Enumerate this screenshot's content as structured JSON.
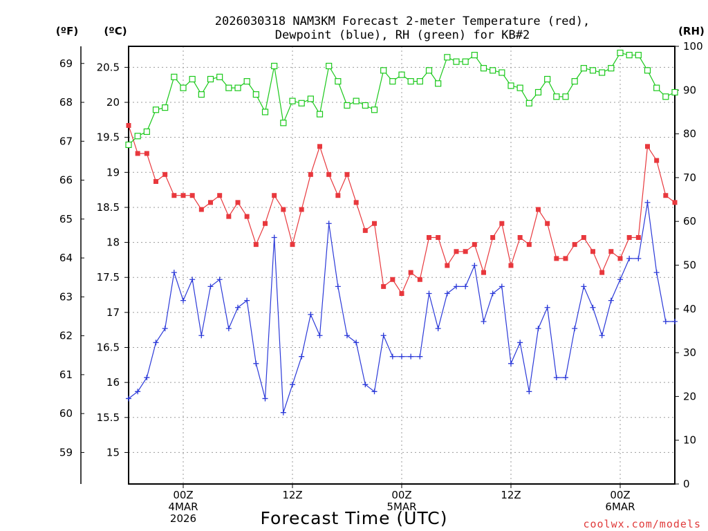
{
  "chart_data": {
    "type": "line",
    "title_line1": "2026030318 NAM3KM Forecast 2-meter Temperature (red),",
    "title_line2": "Dewpoint (blue), RH (green) for KB#2",
    "unit_labels": {
      "fahrenheit": "(ºF)",
      "celsius": "(ºC)",
      "rh": "(RH)"
    },
    "xlabel": "Forecast Time (UTC)",
    "credit": "coolwx.com/models",
    "x_ticks": [
      {
        "hour": 6,
        "lines": [
          "00Z",
          "4MAR",
          "2026"
        ]
      },
      {
        "hour": 18,
        "lines": [
          "12Z"
        ]
      },
      {
        "hour": 30,
        "lines": [
          "00Z",
          "5MAR"
        ]
      },
      {
        "hour": 42,
        "lines": [
          "12Z"
        ]
      },
      {
        "hour": 54,
        "lines": [
          "00Z",
          "6MAR"
        ]
      }
    ],
    "xlim": [
      0,
      60
    ],
    "celsius_lim": [
      14.55,
      20.8
    ],
    "celsius_ticks": [
      "15",
      "15.5",
      "16",
      "16.5",
      "17",
      "17.5",
      "18",
      "18.5",
      "19",
      "19.5",
      "20",
      "20.5"
    ],
    "fahrenheit_ticks": [
      "59",
      "60",
      "61",
      "62",
      "63",
      "64",
      "65",
      "66",
      "67",
      "68",
      "69"
    ],
    "rh_lim": [
      0,
      100
    ],
    "rh_ticks": [
      "0",
      "10",
      "20",
      "30",
      "40",
      "50",
      "60",
      "70",
      "80",
      "90",
      "100"
    ],
    "series": [
      {
        "name": "2-meter Temperature",
        "unit": "C",
        "color": "#e8383d",
        "marker": "filled-square",
        "values": [
          19.67,
          19.27,
          19.27,
          18.87,
          18.97,
          18.67,
          18.67,
          18.67,
          18.47,
          18.57,
          18.67,
          18.37,
          18.57,
          18.37,
          17.97,
          18.27,
          18.67,
          18.47,
          17.97,
          18.47,
          18.97,
          19.37,
          18.97,
          18.67,
          18.97,
          18.57,
          18.17,
          18.27,
          17.37,
          17.47,
          17.27,
          17.57,
          17.47,
          18.07,
          18.07,
          17.67,
          17.87,
          17.87,
          17.97,
          17.57,
          18.07,
          18.27,
          17.67,
          18.07,
          17.97,
          18.47,
          18.27,
          17.77,
          17.77,
          17.97,
          18.07,
          17.87,
          17.57,
          17.87,
          17.77,
          18.07,
          18.07,
          19.37,
          19.17,
          18.67,
          18.57
        ]
      },
      {
        "name": "Dewpoint",
        "unit": "C",
        "color": "#2a38d8",
        "marker": "plus",
        "values": [
          15.77,
          15.87,
          16.07,
          16.57,
          16.77,
          17.57,
          17.17,
          17.47,
          16.67,
          17.37,
          17.47,
          16.77,
          17.07,
          17.17,
          16.27,
          15.77,
          18.07,
          15.57,
          15.97,
          16.37,
          16.97,
          16.67,
          18.27,
          17.37,
          16.67,
          16.57,
          15.97,
          15.87,
          16.67,
          16.37,
          16.37,
          16.37,
          16.37,
          17.27,
          16.77,
          17.27,
          17.37,
          17.37,
          17.67,
          16.87,
          17.27,
          17.37,
          16.27,
          16.57,
          15.87,
          16.77,
          17.07,
          16.07,
          16.07,
          16.77,
          17.37,
          17.07,
          16.67,
          17.17,
          17.47,
          17.77,
          17.77,
          18.57,
          17.57,
          16.87,
          16.87
        ]
      },
      {
        "name": "Relative Humidity",
        "unit": "%",
        "color": "#19c819",
        "marker": "open-square",
        "values": [
          77.5,
          79.5,
          80.5,
          85.5,
          86,
          93,
          90.5,
          92.5,
          89,
          92.5,
          93,
          90.5,
          90.5,
          92,
          89,
          85,
          95.5,
          82.5,
          87.5,
          87,
          88,
          84.5,
          95.5,
          92,
          86.5,
          87.5,
          86.5,
          85.5,
          94.5,
          92,
          93.5,
          92,
          92,
          94.5,
          91.5,
          97.5,
          96.5,
          96.5,
          98,
          95,
          94.5,
          94,
          91,
          90.5,
          87,
          89.5,
          92.5,
          88.5,
          88.5,
          92,
          95,
          94.5,
          94,
          95,
          98.5,
          98,
          98,
          94.5,
          90.5,
          88.5,
          89.5
        ]
      }
    ]
  }
}
